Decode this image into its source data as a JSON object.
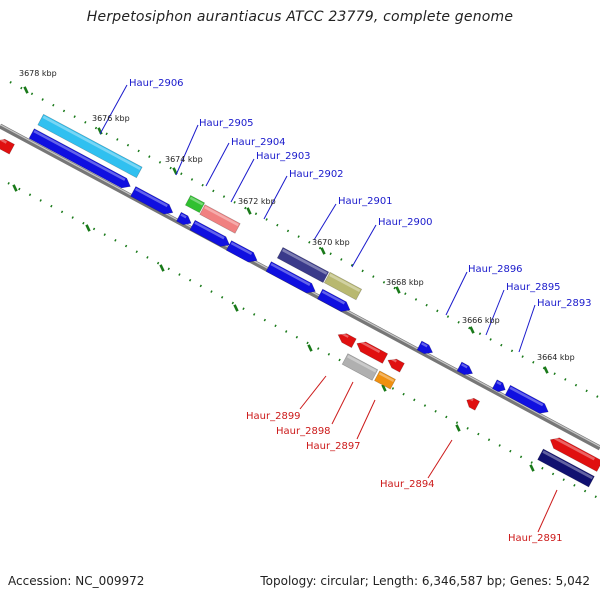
{
  "title": "Herpetosiphon aurantiacus ATCC 23779, complete genome",
  "footer": {
    "accession": "Accession: NC_009972",
    "summary": "Topology: circular; Length: 6,346,587 bp; Genes: 5,042"
  },
  "ticks": [
    "3678 kbp",
    "3676 kbp",
    "3674 kbp",
    "3672 kbp",
    "3670 kbp",
    "3668 kbp",
    "3666 kbp",
    "3664 kbp"
  ],
  "forward_genes": [
    "Haur_2906",
    "Haur_2905",
    "Haur_2904",
    "Haur_2903",
    "Haur_2902",
    "Haur_2901",
    "Haur_2900",
    "Haur_2896",
    "Haur_2895",
    "Haur_2893"
  ],
  "reverse_genes": [
    "Haur_2899",
    "Haur_2898",
    "Haur_2897",
    "Haur_2894",
    "Haur_2891"
  ],
  "colors": {
    "forward_label": "#1a1acc",
    "reverse_label": "#cc1a1a",
    "tick_green": "#1a7a1a",
    "backbone": "#808080",
    "cds_blue": "#1010e0",
    "cds_red": "#e01010",
    "cyan": "#30c0f0",
    "green": "#30c030",
    "salmon": "#f08080",
    "slate": "#3a3a8a",
    "khaki": "#b8b870",
    "gray": "#b0b0b0",
    "orange": "#f09010",
    "navy": "#101070"
  }
}
